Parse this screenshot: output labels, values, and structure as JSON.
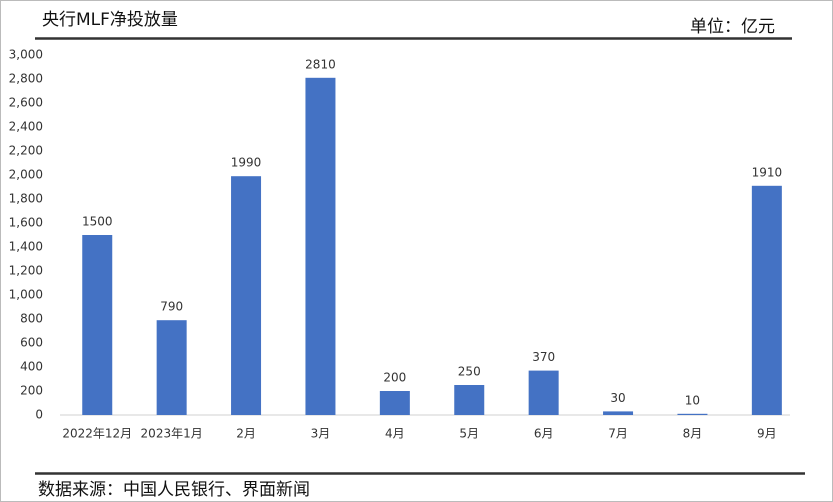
{
  "chart_data": {
    "type": "bar",
    "title": "央行MLF净投放量",
    "unit": "单位：亿元",
    "source": "数据来源：中国人民银行、界面新闻",
    "categories": [
      "2022年12月",
      "2023年1月",
      "2月",
      "3月",
      "4月",
      "5月",
      "6月",
      "7月",
      "8月",
      "9月"
    ],
    "values": [
      1500,
      790,
      1990,
      2810,
      200,
      250,
      370,
      30,
      10,
      1910
    ],
    "color": "#4472c4",
    "ylim": [
      0,
      3000
    ],
    "yticks": [
      0,
      200,
      400,
      600,
      800,
      {
        "value": 1000,
        "label": "1,000"
      },
      {
        "value": 1200,
        "label": "1,200"
      },
      {
        "value": 1400,
        "label": "1,400"
      },
      {
        "value": 1600,
        "label": "1,600"
      },
      {
        "value": 1800,
        "label": "1,800"
      },
      {
        "value": 2000,
        "label": "2,000"
      },
      {
        "value": 2200,
        "label": "2,200"
      },
      {
        "value": 2400,
        "label": "2,400"
      },
      {
        "value": 2600,
        "label": "2,600"
      },
      {
        "value": 2800,
        "label": "2,800"
      },
      {
        "value": 3000,
        "label": "3,000"
      }
    ],
    "grid": false
  }
}
